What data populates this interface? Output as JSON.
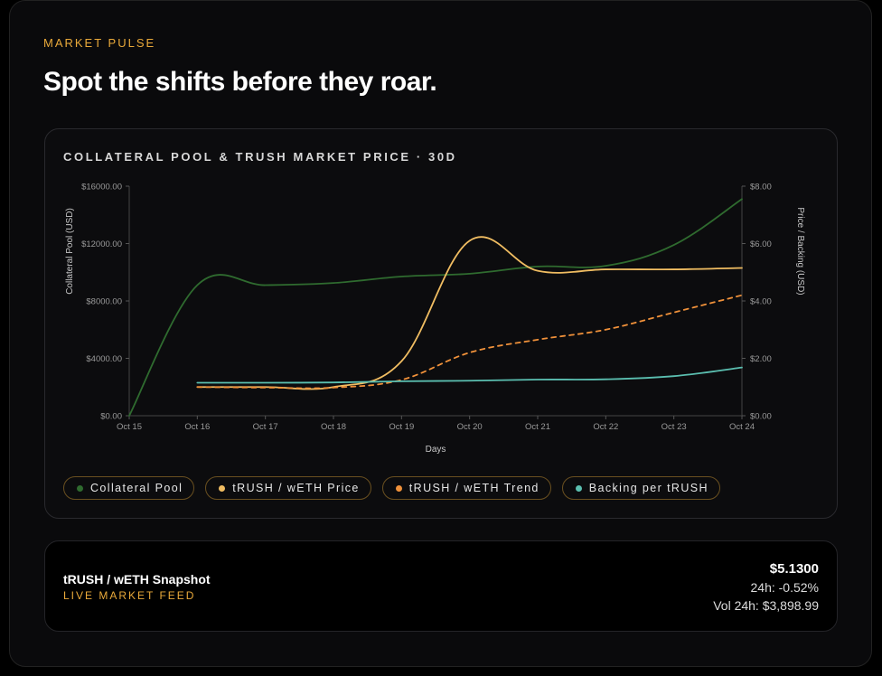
{
  "header": {
    "eyebrow": "MARKET PULSE",
    "headline": "Spot the shifts before they roar."
  },
  "chart_card": {
    "title": "COLLATERAL POOL & TRUSH MARKET PRICE · 30D"
  },
  "chart_data": {
    "type": "line",
    "title": "COLLATERAL POOL & TRUSH MARKET PRICE · 30D",
    "xlabel": "Days",
    "ylabel_left": "Collateral Pool (USD)",
    "ylabel_right": "Price / Backing (USD)",
    "x": [
      "Oct 15",
      "Oct 16",
      "Oct 17",
      "Oct 18",
      "Oct 19",
      "Oct 20",
      "Oct 21",
      "Oct 22",
      "Oct 23",
      "Oct 24"
    ],
    "ylim_left": [
      0,
      16000
    ],
    "ylim_right": [
      0,
      8
    ],
    "yticks_left": [
      "$0.00",
      "$4000.00",
      "$8000.00",
      "$12000.00",
      "$16000.00"
    ],
    "yticks_right": [
      "$0.00",
      "$2.00",
      "$4.00",
      "$6.00",
      "$8.00"
    ],
    "grid": false,
    "series": [
      {
        "name": "Collateral Pool",
        "axis": "left",
        "color": "#2f6b2f",
        "style": "solid",
        "values": [
          0,
          9100,
          9100,
          9250,
          9700,
          9900,
          10400,
          10450,
          11900,
          15100
        ]
      },
      {
        "name": "tRUSH / wETH Price",
        "axis": "right",
        "color": "#f0bd62",
        "style": "solid",
        "values": [
          null,
          1.0,
          1.0,
          1.0,
          1.9,
          6.1,
          5.05,
          5.1,
          5.1,
          5.15
        ]
      },
      {
        "name": "tRUSH / wETH Trend",
        "axis": "right",
        "color": "#f0913a",
        "style": "dashed",
        "values": [
          null,
          1.0,
          0.98,
          0.98,
          1.25,
          2.2,
          2.65,
          3.0,
          3.6,
          4.2
        ]
      },
      {
        "name": "Backing per tRUSH",
        "axis": "right",
        "color": "#5bbfb0",
        "style": "solid",
        "values": [
          null,
          1.15,
          1.15,
          1.16,
          1.2,
          1.22,
          1.26,
          1.27,
          1.38,
          1.68
        ]
      }
    ]
  },
  "legend": [
    {
      "label": "Collateral Pool",
      "color": "#2f6b2f"
    },
    {
      "label": "tRUSH / wETH Price",
      "color": "#f0bd62"
    },
    {
      "label": "tRUSH / wETH Trend",
      "color": "#f0913a"
    },
    {
      "label": "Backing per tRUSH",
      "color": "#5bbfb0"
    }
  ],
  "snapshot": {
    "title": "tRUSH / wETH Snapshot",
    "subtitle": "LIVE MARKET FEED",
    "price": "$5.1300",
    "change": "24h: -0.52%",
    "volume": "Vol 24h: $3,898.99"
  }
}
